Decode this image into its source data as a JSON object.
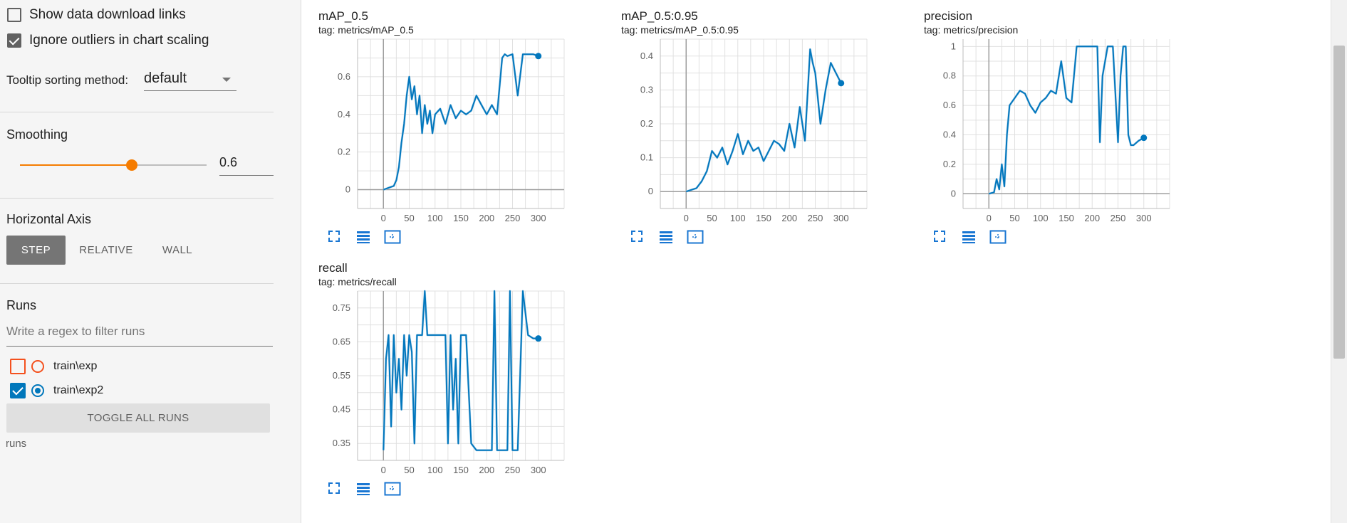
{
  "settings": {
    "show_download_links": "Show data download links",
    "ignore_outliers": "Ignore outliers in chart scaling",
    "tooltip_label": "Tooltip sorting method:",
    "tooltip_value": "default",
    "smoothing_label": "Smoothing",
    "smoothing_value": "0.6",
    "smoothing_fraction": 0.6,
    "axis_label": "Horizontal Axis",
    "axis_step": "STEP",
    "axis_relative": "RELATIVE",
    "axis_wall": "WALL",
    "runs_label": "Runs",
    "regex_placeholder": "Write a regex to filter runs",
    "toggle_all": "TOGGLE ALL RUNS",
    "runs_footer": "runs"
  },
  "runs": [
    {
      "name": "train\\exp",
      "checked": false,
      "color": "#f4511e"
    },
    {
      "name": "train\\exp2",
      "checked": true,
      "color": "#0077bb"
    }
  ],
  "colors": {
    "accent": "#f57c00",
    "series": "#0277bd",
    "series_raw": "#b3d4ea"
  },
  "chart_data": [
    {
      "type": "line",
      "title": "mAP_0.5",
      "tag": "tag: metrics/mAP_0.5",
      "x_ticks": [
        "0",
        "50",
        "100",
        "150",
        "200",
        "250",
        "300"
      ],
      "y_ticks": [
        "0",
        "0.2",
        "0.4",
        "0.6"
      ],
      "xlim": [
        -50,
        350
      ],
      "ylim": [
        -0.1,
        0.8
      ],
      "series": [
        {
          "x": [
            0,
            10,
            20,
            25,
            30,
            35,
            40,
            45,
            50,
            55,
            60,
            65,
            70,
            75,
            80,
            85,
            90,
            95,
            100,
            110,
            120,
            130,
            140,
            150,
            160,
            170,
            180,
            190,
            200,
            210,
            220,
            230,
            235,
            240,
            250,
            260,
            270,
            280,
            290,
            300
          ],
          "y": [
            0.0,
            0.01,
            0.02,
            0.05,
            0.12,
            0.25,
            0.35,
            0.5,
            0.6,
            0.48,
            0.55,
            0.4,
            0.5,
            0.3,
            0.45,
            0.35,
            0.42,
            0.3,
            0.4,
            0.43,
            0.35,
            0.45,
            0.38,
            0.42,
            0.4,
            0.42,
            0.5,
            0.45,
            0.4,
            0.45,
            0.4,
            0.7,
            0.72,
            0.71,
            0.72,
            0.5,
            0.72,
            0.72,
            0.72,
            0.71
          ]
        }
      ]
    },
    {
      "type": "line",
      "title": "mAP_0.5:0.95",
      "tag": "tag: metrics/mAP_0.5:0.95",
      "x_ticks": [
        "0",
        "50",
        "100",
        "150",
        "200",
        "250",
        "300"
      ],
      "y_ticks": [
        "0",
        "0.1",
        "0.2",
        "0.3",
        "0.4"
      ],
      "xlim": [
        -50,
        350
      ],
      "ylim": [
        -0.05,
        0.45
      ],
      "series": [
        {
          "x": [
            0,
            10,
            20,
            30,
            40,
            50,
            60,
            70,
            80,
            90,
            100,
            110,
            120,
            130,
            140,
            150,
            160,
            170,
            180,
            190,
            200,
            210,
            220,
            230,
            240,
            245,
            250,
            260,
            270,
            280,
            290,
            300
          ],
          "y": [
            0.0,
            0.005,
            0.01,
            0.03,
            0.06,
            0.12,
            0.1,
            0.13,
            0.08,
            0.12,
            0.17,
            0.11,
            0.15,
            0.12,
            0.13,
            0.09,
            0.12,
            0.15,
            0.14,
            0.12,
            0.2,
            0.13,
            0.25,
            0.15,
            0.42,
            0.38,
            0.35,
            0.2,
            0.3,
            0.38,
            0.35,
            0.32
          ]
        }
      ]
    },
    {
      "type": "line",
      "title": "precision",
      "tag": "tag: metrics/precision",
      "x_ticks": [
        "0",
        "50",
        "100",
        "150",
        "200",
        "250",
        "300"
      ],
      "y_ticks": [
        "0",
        "0.2",
        "0.4",
        "0.6",
        "0.8",
        "1"
      ],
      "xlim": [
        -50,
        350
      ],
      "ylim": [
        -0.1,
        1.05
      ],
      "series": [
        {
          "x": [
            0,
            10,
            15,
            20,
            25,
            30,
            35,
            40,
            50,
            60,
            70,
            80,
            90,
            100,
            110,
            120,
            130,
            140,
            150,
            160,
            170,
            180,
            190,
            200,
            210,
            215,
            220,
            230,
            240,
            250,
            255,
            260,
            265,
            270,
            275,
            280,
            290,
            300
          ],
          "y": [
            0.0,
            0.01,
            0.1,
            0.03,
            0.2,
            0.05,
            0.4,
            0.6,
            0.65,
            0.7,
            0.68,
            0.6,
            0.55,
            0.62,
            0.65,
            0.7,
            0.68,
            0.9,
            0.65,
            0.62,
            1.0,
            1.0,
            1.0,
            1.0,
            1.0,
            0.35,
            0.8,
            1.0,
            1.0,
            0.35,
            0.8,
            1.0,
            1.0,
            0.4,
            0.33,
            0.33,
            0.36,
            0.38
          ]
        }
      ]
    },
    {
      "type": "line",
      "title": "recall",
      "tag": "tag: metrics/recall",
      "x_ticks": [
        "0",
        "50",
        "100",
        "150",
        "200",
        "250",
        "300"
      ],
      "y_ticks": [
        "0.35",
        "0.45",
        "0.55",
        "0.65",
        "0.75"
      ],
      "xlim": [
        -50,
        350
      ],
      "ylim": [
        0.3,
        0.8
      ],
      "series": [
        {
          "x": [
            0,
            5,
            10,
            15,
            20,
            25,
            30,
            35,
            40,
            45,
            50,
            55,
            60,
            65,
            70,
            75,
            80,
            85,
            90,
            100,
            110,
            120,
            125,
            130,
            135,
            140,
            145,
            150,
            155,
            160,
            170,
            180,
            200,
            210,
            215,
            220,
            225,
            230,
            240,
            245,
            250,
            260,
            270,
            280,
            290,
            300
          ],
          "y": [
            0.33,
            0.6,
            0.67,
            0.4,
            0.67,
            0.5,
            0.6,
            0.45,
            0.67,
            0.55,
            0.67,
            0.62,
            0.35,
            0.67,
            0.67,
            0.67,
            0.8,
            0.67,
            0.67,
            0.67,
            0.67,
            0.67,
            0.35,
            0.67,
            0.45,
            0.6,
            0.35,
            0.67,
            0.67,
            0.67,
            0.35,
            0.33,
            0.33,
            0.33,
            0.8,
            0.33,
            0.33,
            0.33,
            0.33,
            0.8,
            0.33,
            0.33,
            0.8,
            0.67,
            0.66,
            0.66
          ]
        }
      ]
    }
  ]
}
